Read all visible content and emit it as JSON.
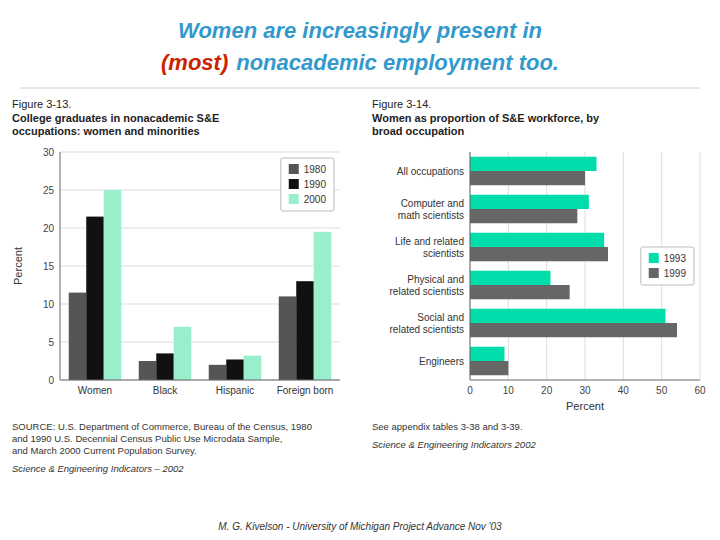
{
  "title": [
    [
      {
        "text": "Women are increasingly present in",
        "color": "#3399cc"
      }
    ],
    [
      {
        "text": "(most)",
        "color": "#cc2200"
      },
      {
        "text": "nonacademic employment too.",
        "color": "#3399cc"
      }
    ]
  ],
  "annotations": [
    "M. G. Kivelson - University of Michigan  Project Advance Nov '03"
  ],
  "chart_data": [
    {
      "type": "bar",
      "title": "Figure 3-13.",
      "subtitle": [
        "College graduates in nonacademic S&E",
        "occupations: women and minorities"
      ],
      "ylabel": "Percent",
      "categories": [
        "Women",
        "Black",
        "Hispanic",
        "Foreign born"
      ],
      "series": [
        {
          "name": "1980",
          "color": "#555555",
          "values": [
            11.5,
            2.5,
            2.0,
            11.0
          ]
        },
        {
          "name": "1990",
          "color": "#111111",
          "values": [
            21.5,
            3.5,
            2.7,
            13.0
          ]
        },
        {
          "name": "2000",
          "color": "#99eecc",
          "values": [
            25.0,
            7.0,
            3.2,
            19.5
          ]
        }
      ],
      "ylim": [
        0,
        30
      ],
      "yticks": [
        0,
        5,
        10,
        15,
        20,
        25,
        30
      ],
      "grid": true,
      "legend": "upper right",
      "annotations": [
        "SOURCE: U.S. Department of Commerce, Bureau of the Census, 1980\nand 1990 U.S. Decennial Census Public Use Microdata Sample,\nand March 2000 Current Population Survey.",
        "Science & Engineering Indicators – 2002"
      ]
    },
    {
      "type": "bar",
      "orientation": "horizontal",
      "title": "Figure 3-14.",
      "subtitle": [
        "Women as proportion of S&E workforce, by",
        "broad occupation"
      ],
      "xlabel": "Percent",
      "categories": [
        "All occupations",
        "Computer and\nmath scientists",
        "Life and related\nscientists",
        "Physical and\nrelated scientists",
        "Social and\nrelated scientists",
        "Engineers"
      ],
      "series": [
        {
          "name": "1993",
          "color": "#00ddaa",
          "values": [
            33,
            31,
            35,
            21,
            51,
            9
          ]
        },
        {
          "name": "1999",
          "color": "#666666",
          "values": [
            30,
            28,
            36,
            26,
            54,
            10
          ]
        }
      ],
      "xlim": [
        0,
        60
      ],
      "xticks": [
        0,
        10,
        20,
        30,
        40,
        50,
        60
      ],
      "grid": true,
      "legend": "center right",
      "annotations": [
        "See appendix tables 3-38 and 3-39.",
        "Science & Engineering Indicators   2002"
      ]
    }
  ]
}
